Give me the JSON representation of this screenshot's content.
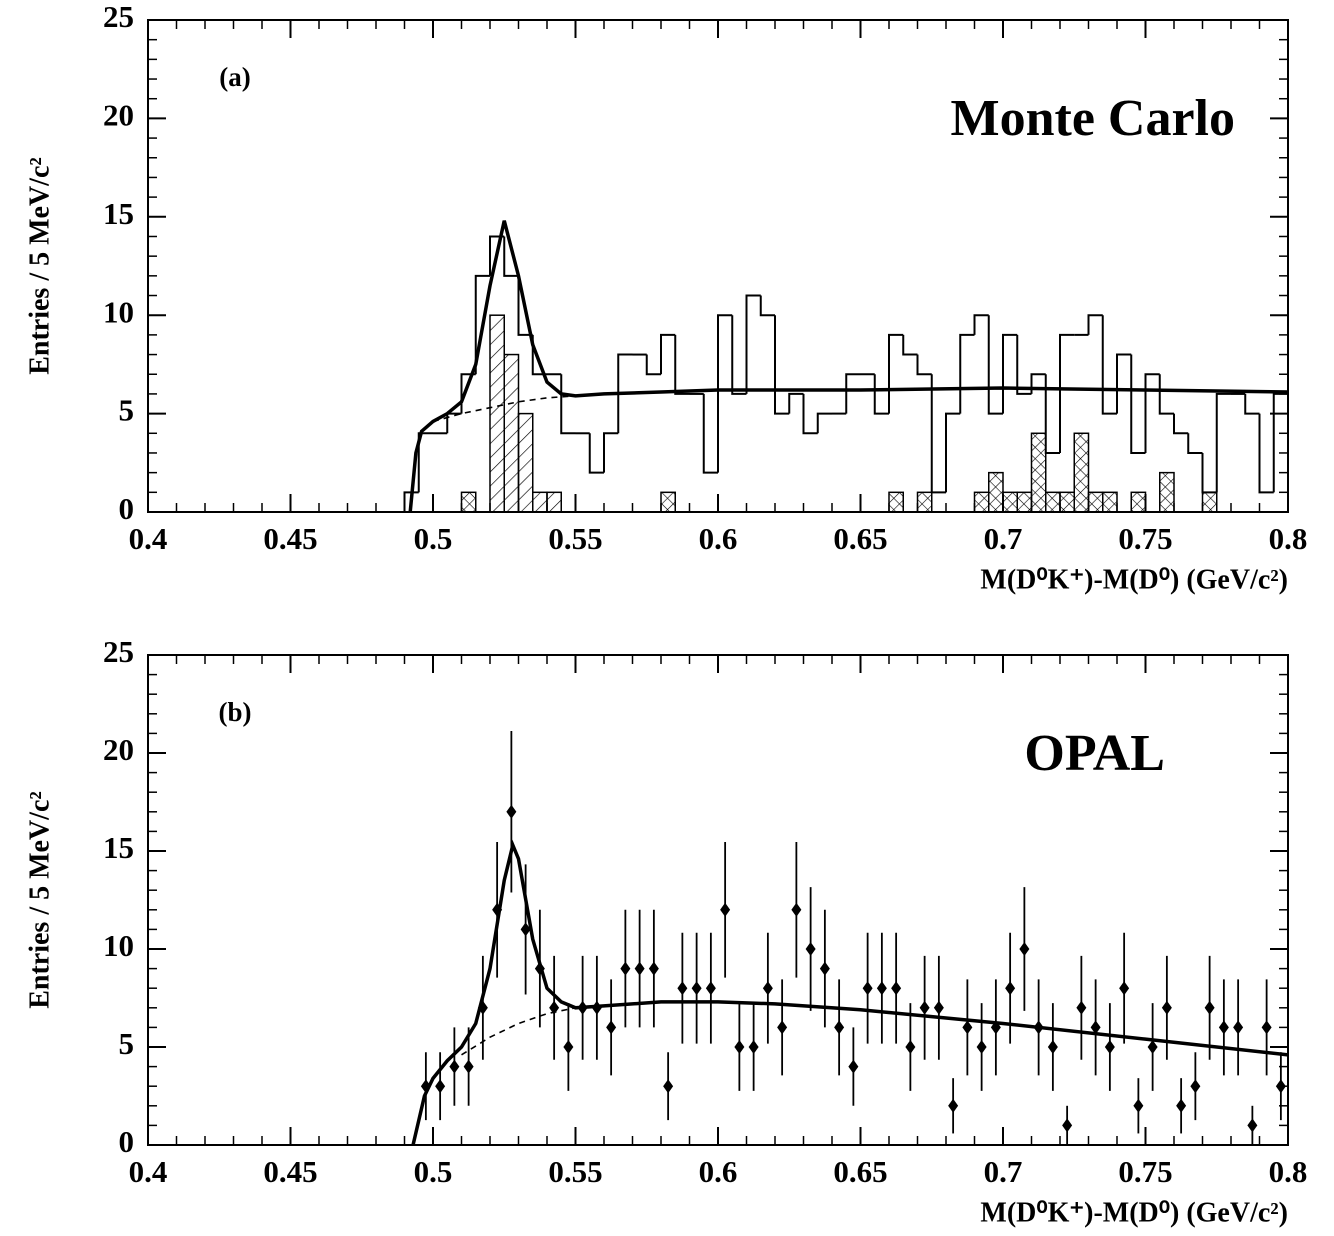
{
  "chart_data": [
    {
      "type": "histogram",
      "panel_label": "(a)",
      "annotation": "Monte Carlo",
      "x_label": "M(D⁰K⁺)-M(D⁰)  (GeV/c²)",
      "y_label": "Entries / 5 MeV/c²",
      "xlim": [
        0.4,
        0.8
      ],
      "xticks": [
        0.4,
        0.45,
        0.5,
        0.55,
        0.6,
        0.65,
        0.7,
        0.75,
        0.8
      ],
      "ylim": [
        0,
        25
      ],
      "yticks": [
        0,
        5,
        10,
        15,
        20,
        25
      ],
      "color": "#000000",
      "histograms": [
        {
          "fill": "none",
          "bins": [
            0.49,
            0.495,
            0.5,
            0.505,
            0.51,
            0.515,
            0.52,
            0.525,
            0.53,
            0.535,
            0.54,
            0.545,
            0.55,
            0.555,
            0.56,
            0.565,
            0.57,
            0.575,
            0.58,
            0.585,
            0.59,
            0.595,
            0.6,
            0.605,
            0.61,
            0.615,
            0.62,
            0.625,
            0.63,
            0.635,
            0.64,
            0.645,
            0.65,
            0.655,
            0.66,
            0.665,
            0.67,
            0.675,
            0.68,
            0.685,
            0.69,
            0.695,
            0.7,
            0.705,
            0.71,
            0.715,
            0.72,
            0.725,
            0.73,
            0.735,
            0.74,
            0.745,
            0.75,
            0.755,
            0.76,
            0.765,
            0.77,
            0.775,
            0.78,
            0.785,
            0.79,
            0.795,
            0.8
          ],
          "counts": [
            1,
            4,
            4,
            5,
            7,
            12,
            14,
            12,
            9,
            7,
            7,
            4,
            4,
            2,
            4,
            8,
            8,
            7,
            9,
            6,
            6,
            2,
            10,
            6,
            11,
            10,
            5,
            6,
            4,
            5,
            5,
            7,
            7,
            5,
            9,
            8,
            7,
            1,
            5,
            9,
            10,
            5,
            9,
            6,
            7,
            3,
            9,
            9,
            10,
            5,
            8,
            3,
            7,
            5,
            4,
            3,
            1,
            6,
            6,
            5,
            1,
            6
          ]
        },
        {
          "fill": "hatch",
          "bins": [
            0.52,
            0.525,
            0.53,
            0.535,
            0.54,
            0.545
          ],
          "counts": [
            10,
            8,
            5,
            1,
            1
          ]
        },
        {
          "fill": "crosshatch",
          "bins": [
            0.49,
            0.495,
            0.5,
            0.505,
            0.51,
            0.515,
            0.52,
            0.525,
            0.53,
            0.535,
            0.54,
            0.545,
            0.55,
            0.555,
            0.56,
            0.565,
            0.57,
            0.575,
            0.58,
            0.585,
            0.59,
            0.595,
            0.6,
            0.605,
            0.61,
            0.615,
            0.62,
            0.625,
            0.63,
            0.635,
            0.64,
            0.645,
            0.65,
            0.655,
            0.66,
            0.665,
            0.67,
            0.675,
            0.68,
            0.685,
            0.69,
            0.695,
            0.7,
            0.705,
            0.71,
            0.715,
            0.72,
            0.725,
            0.73,
            0.735,
            0.74,
            0.745,
            0.75,
            0.755,
            0.76,
            0.765,
            0.77,
            0.775,
            0.78,
            0.785,
            0.79,
            0.795,
            0.8
          ],
          "counts": [
            0,
            0,
            0,
            0,
            1,
            0,
            0,
            0,
            0,
            0,
            0,
            0,
            0,
            0,
            0,
            0,
            0,
            0,
            1,
            0,
            0,
            0,
            0,
            0,
            0,
            0,
            0,
            0,
            0,
            0,
            0,
            0,
            0,
            0,
            1,
            0,
            1,
            0,
            0,
            0,
            1,
            2,
            1,
            1,
            4,
            1,
            1,
            4,
            1,
            1,
            0,
            1,
            0,
            2,
            0,
            0,
            1,
            0,
            0,
            0,
            0,
            0
          ]
        }
      ],
      "curves": [
        {
          "style": "solid",
          "x": [
            0.492,
            0.494,
            0.496,
            0.5,
            0.505,
            0.51,
            0.515,
            0.52,
            0.525,
            0.53,
            0.535,
            0.54,
            0.545,
            0.55,
            0.56,
            0.58,
            0.6,
            0.65,
            0.7,
            0.75,
            0.8
          ],
          "values": [
            0,
            3,
            4.1,
            4.6,
            5,
            5.6,
            7.5,
            11.5,
            14.8,
            12,
            8.5,
            6.6,
            6,
            5.9,
            6,
            6.1,
            6.2,
            6.2,
            6.3,
            6.2,
            6.1
          ]
        },
        {
          "style": "dashed",
          "x": [
            0.5,
            0.51,
            0.52,
            0.53,
            0.54,
            0.55
          ],
          "values": [
            4.6,
            5,
            5.3,
            5.6,
            5.8,
            5.9
          ]
        }
      ]
    },
    {
      "type": "errorbar",
      "panel_label": "(b)",
      "annotation": "OPAL",
      "x_label": "M(D⁰K⁺)-M(D⁰)  (GeV/c²)",
      "y_label": "Entries / 5 MeV/c²",
      "xlim": [
        0.4,
        0.8
      ],
      "xticks": [
        0.4,
        0.45,
        0.5,
        0.55,
        0.6,
        0.65,
        0.7,
        0.75,
        0.8
      ],
      "ylim": [
        0,
        25
      ],
      "yticks": [
        0,
        5,
        10,
        15,
        20,
        25
      ],
      "color": "#000000",
      "x": [
        0.4975,
        0.5025,
        0.5075,
        0.5125,
        0.5175,
        0.5225,
        0.5275,
        0.5325,
        0.5375,
        0.5425,
        0.5475,
        0.5525,
        0.5575,
        0.5625,
        0.5675,
        0.5725,
        0.5775,
        0.5825,
        0.5875,
        0.5925,
        0.5975,
        0.6025,
        0.6075,
        0.6125,
        0.6175,
        0.6225,
        0.6275,
        0.6325,
        0.6375,
        0.6425,
        0.6475,
        0.6525,
        0.6575,
        0.6625,
        0.6675,
        0.6725,
        0.6775,
        0.6825,
        0.6875,
        0.6925,
        0.6975,
        0.7025,
        0.7075,
        0.7125,
        0.7175,
        0.7225,
        0.7275,
        0.7325,
        0.7375,
        0.7425,
        0.7475,
        0.7525,
        0.7575,
        0.7625,
        0.7675,
        0.7725,
        0.7775,
        0.7825,
        0.7875,
        0.7925,
        0.7975
      ],
      "values": [
        3,
        3,
        4,
        4,
        7,
        12,
        17,
        11,
        9,
        7,
        5,
        7,
        7,
        6,
        9,
        9,
        9,
        3,
        8,
        8,
        8,
        12,
        5,
        5,
        8,
        6,
        12,
        10,
        9,
        6,
        4,
        8,
        8,
        8,
        5,
        7,
        7,
        2,
        6,
        5,
        6,
        8,
        10,
        6,
        5,
        1,
        7,
        6,
        5,
        8,
        2,
        5,
        7,
        2,
        3,
        7,
        6,
        6,
        1,
        6,
        3
      ],
      "errors": [
        1.73,
        1.73,
        2,
        2,
        2.65,
        3.46,
        4.12,
        3.32,
        3,
        2.65,
        2.24,
        2.65,
        2.65,
        2.45,
        3,
        3,
        3,
        1.73,
        2.83,
        2.83,
        2.83,
        3.46,
        2.24,
        2.24,
        2.83,
        2.45,
        3.46,
        3.16,
        3,
        2.45,
        2,
        2.83,
        2.83,
        2.83,
        2.24,
        2.65,
        2.65,
        1.41,
        2.45,
        2.24,
        2.45,
        2.83,
        3.16,
        2.45,
        2.24,
        1,
        2.65,
        2.45,
        2.24,
        2.83,
        1.41,
        2.24,
        2.65,
        1.41,
        1.73,
        2.65,
        2.45,
        2.45,
        1,
        2.45,
        1.73
      ],
      "curves": [
        {
          "style": "solid",
          "x": [
            0.493,
            0.497,
            0.5,
            0.505,
            0.51,
            0.515,
            0.52,
            0.525,
            0.528,
            0.53,
            0.535,
            0.54,
            0.545,
            0.55,
            0.56,
            0.58,
            0.6,
            0.62,
            0.65,
            0.7,
            0.75,
            0.8
          ],
          "values": [
            0,
            2.5,
            3.4,
            4.3,
            5,
            6.2,
            9,
            13.5,
            15.3,
            14.6,
            10.5,
            8,
            7.3,
            7,
            7.1,
            7.3,
            7.3,
            7.2,
            6.9,
            6.2,
            5.4,
            4.6
          ]
        },
        {
          "style": "dashed",
          "x": [
            0.51,
            0.52,
            0.53,
            0.54,
            0.55,
            0.56
          ],
          "values": [
            4.6,
            5.5,
            6.2,
            6.7,
            7,
            7.1
          ]
        }
      ]
    }
  ]
}
